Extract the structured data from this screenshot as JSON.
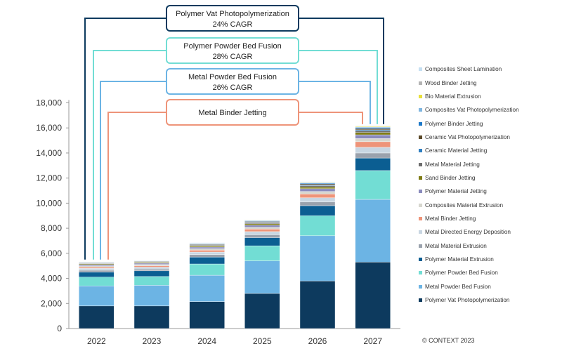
{
  "chart_data": {
    "type": "bar",
    "stacked": true,
    "categories": [
      "2022",
      "2023",
      "2024",
      "2025",
      "2026",
      "2027"
    ],
    "ylim": [
      0,
      18000
    ],
    "yticks": [
      "0",
      "2,000",
      "4,000",
      "6,000",
      "8,000",
      "10,000",
      "12,000",
      "14,000",
      "16,000",
      "18,000"
    ],
    "grid": false,
    "legend_position": "right",
    "series": [
      {
        "name": "Polymer Vat Photopolymerization",
        "color": "#0d3a5e",
        "values": [
          1800,
          1800,
          2150,
          2800,
          3800,
          5300
        ]
      },
      {
        "name": "Metal Powder Bed Fusion",
        "color": "#6cb4e4",
        "values": [
          1600,
          1650,
          2100,
          2600,
          3600,
          5000
        ]
      },
      {
        "name": "Polymer Powder Bed Fusion",
        "color": "#72ddd4",
        "values": [
          700,
          700,
          900,
          1200,
          1600,
          2300
        ]
      },
      {
        "name": "Polymer Material Extrusion",
        "color": "#0b5e92",
        "values": [
          400,
          450,
          550,
          650,
          800,
          1000
        ]
      },
      {
        "name": "Metal Material Extrusion",
        "color": "#9aa2ad",
        "values": [
          150,
          150,
          200,
          230,
          300,
          400
        ]
      },
      {
        "name": "Metal Directed Energy Deposition",
        "color": "#c8d6e2",
        "values": [
          150,
          150,
          200,
          250,
          330,
          450
        ]
      },
      {
        "name": "Metal Binder Jetting",
        "color": "#ee9479",
        "values": [
          100,
          110,
          150,
          200,
          300,
          450
        ]
      },
      {
        "name": "Composites Material Extrusion",
        "color": "#d7d7cf",
        "values": [
          100,
          100,
          120,
          150,
          200,
          250
        ]
      },
      {
        "name": "Polymer Material Jetting",
        "color": "#8a8bbd",
        "values": [
          100,
          100,
          130,
          160,
          220,
          300
        ]
      },
      {
        "name": "Sand Binder Jetting",
        "color": "#7e7b14",
        "values": [
          70,
          70,
          90,
          110,
          140,
          180
        ]
      },
      {
        "name": "Metal Material Jetting",
        "color": "#6d6d6d",
        "values": [
          40,
          40,
          60,
          80,
          110,
          150
        ]
      },
      {
        "name": "Ceramic Material Jetting",
        "color": "#2f7fc1",
        "values": [
          30,
          30,
          40,
          50,
          60,
          70
        ]
      },
      {
        "name": "Ceramic Vat Photopolymerization",
        "color": "#5c4a2a",
        "values": [
          40,
          40,
          50,
          60,
          80,
          100
        ]
      },
      {
        "name": "Polymer Binder Jetting",
        "color": "#1c78c8",
        "values": [
          30,
          30,
          40,
          50,
          60,
          80
        ]
      },
      {
        "name": "Composites Vat Photopolymerization",
        "color": "#7fb6e0",
        "values": [
          20,
          20,
          30,
          40,
          50,
          60
        ]
      },
      {
        "name": "Bio Material Extrusion",
        "color": "#e8e03a",
        "values": [
          20,
          20,
          25,
          30,
          40,
          50
        ]
      },
      {
        "name": "Wood Binder Jetting",
        "color": "#b4b4b4",
        "values": [
          10,
          10,
          15,
          20,
          25,
          30
        ]
      },
      {
        "name": "Composites Sheet Lamination",
        "color": "#c5dff2",
        "values": [
          10,
          10,
          15,
          20,
          25,
          30
        ]
      }
    ],
    "annotations": [
      {
        "name": "Polymer Vat Photopolymerization",
        "line1": "Polymer Vat Photopolymerization",
        "line2": "24% CAGR",
        "color": "#0d3a5e"
      },
      {
        "name": "Polymer Powder Bed Fusion",
        "line1": "Polymer Powder Bed Fusion",
        "line2": "28% CAGR",
        "color": "#72ddd4"
      },
      {
        "name": "Metal Powder Bed Fusion",
        "line1": "Metal Powder Bed Fusion",
        "line2": "26% CAGR",
        "color": "#6cb4e4"
      },
      {
        "name": "Metal Binder Jetting",
        "line1": "Metal Binder Jetting",
        "line2": "",
        "color": "#ee9479"
      }
    ]
  },
  "footer": {
    "copyright": "© CONTEXT 2023"
  }
}
